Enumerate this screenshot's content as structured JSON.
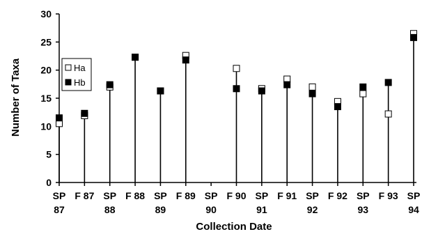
{
  "chart_data": {
    "type": "scatter",
    "xlabel": "Collection Date",
    "ylabel": "Number of Taxa",
    "ylim": [
      0,
      30
    ],
    "yticks": [
      0,
      5,
      10,
      15,
      20,
      25,
      30
    ],
    "categories": [
      [
        "SP",
        "87"
      ],
      [
        "F 87"
      ],
      [
        "SP",
        "88"
      ],
      [
        "F 88"
      ],
      [
        "SP",
        "89"
      ],
      [
        "F 89"
      ],
      [
        "SP",
        "90"
      ],
      [
        "F 90"
      ],
      [
        "SP",
        "91"
      ],
      [
        "F 91"
      ],
      [
        "SP",
        "92"
      ],
      [
        "F 92"
      ],
      [
        "SP",
        "93"
      ],
      [
        "F 93"
      ],
      [
        "SP",
        "94"
      ]
    ],
    "series": [
      {
        "name": "Ha",
        "marker": "open-square",
        "color": "#ffffff",
        "values": [
          10.5,
          11.9,
          17.0,
          22.3,
          16.3,
          22.6,
          null,
          20.3,
          16.7,
          18.4,
          17.0,
          14.4,
          15.8,
          12.2,
          26.5
        ]
      },
      {
        "name": "Hb",
        "marker": "filled-square",
        "color": "#000000",
        "values": [
          11.5,
          12.3,
          17.4,
          22.3,
          16.3,
          21.8,
          null,
          16.7,
          16.3,
          17.4,
          15.8,
          13.5,
          17.0,
          17.8,
          25.8
        ]
      }
    ],
    "legend_position": "left-middle",
    "grid": false
  }
}
